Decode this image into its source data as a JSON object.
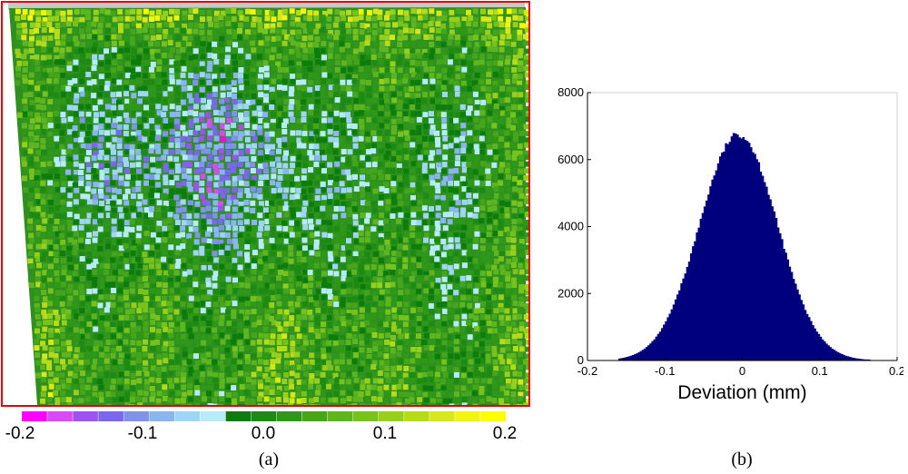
{
  "panels": {
    "a_label": "(a)",
    "b_label": "(b)"
  },
  "colors": {
    "frame": "#e00000",
    "hist_fill": "#00007f",
    "colorbar_stops": [
      "#ff00ff",
      "#d44cf2",
      "#9b55ee",
      "#7a68e8",
      "#7f92ec",
      "#89b6f3",
      "#9fd6f7",
      "#b6ecfa",
      "#0b7d0b",
      "#1c8b12",
      "#2e9918",
      "#45a61c",
      "#5db520",
      "#78c21e",
      "#96cf1c",
      "#b5db1a",
      "#d6e818",
      "#f2f50e",
      "#ffff00"
    ]
  },
  "colorbar": {
    "ticks": [
      "-0.2",
      "-0.1",
      "0.0",
      "0.1",
      "0.2"
    ]
  },
  "chart_data": {
    "type": "bar",
    "title": "",
    "xlabel": "Deviation (mm)",
    "ylabel": "",
    "xlim": [
      -0.2,
      0.2
    ],
    "ylim": [
      0,
      8000
    ],
    "x_ticks": [
      "-0.2",
      "-0.1",
      "0",
      "0.1",
      "0.2"
    ],
    "y_ticks": [
      "0",
      "2000",
      "4000",
      "6000",
      "8000"
    ],
    "bin_range": [
      -0.16,
      0.165
    ],
    "bin_width": 0.0025,
    "histogram_shape": {
      "peak_x": -0.005,
      "peak_count": 6750,
      "sigma_mm": 0.05
    },
    "grid": false
  }
}
